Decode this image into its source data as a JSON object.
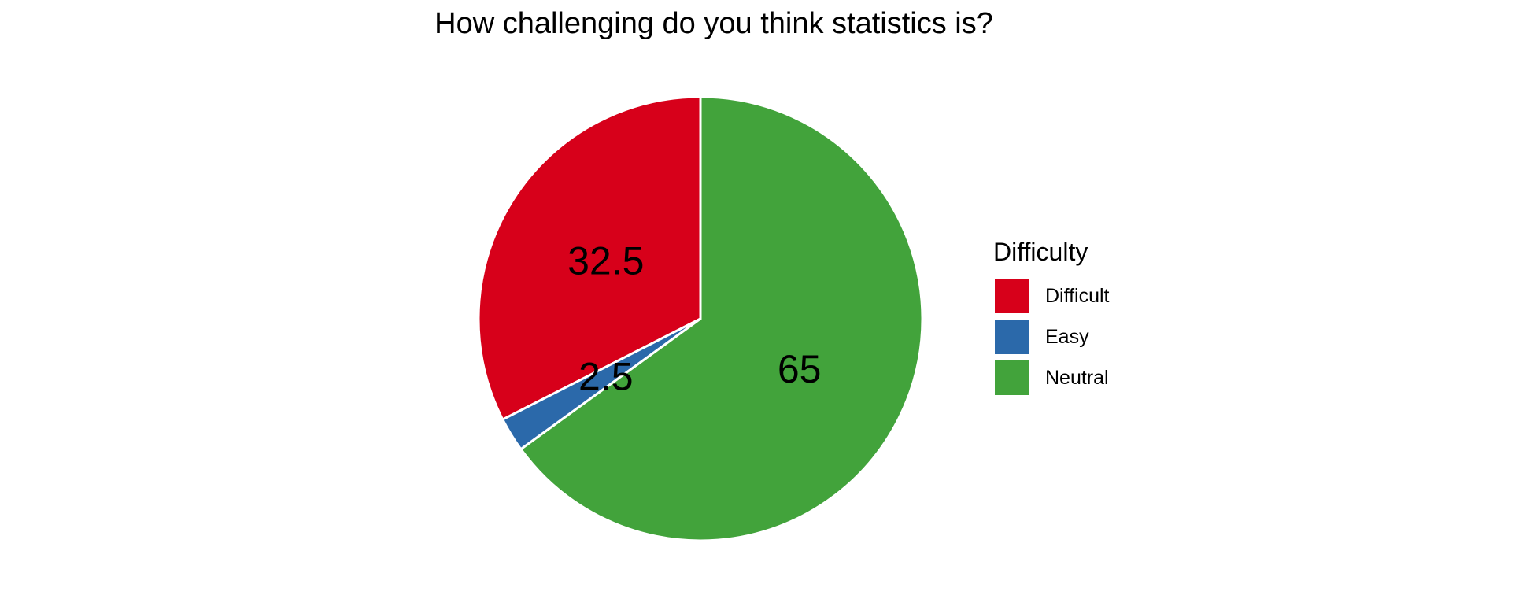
{
  "chart_data": {
    "type": "pie",
    "title": "How challenging do you think statistics is?",
    "legend_title": "Difficulty",
    "legend_position": "right",
    "categories": [
      "Difficult",
      "Easy",
      "Neutral"
    ],
    "values": [
      32.5,
      2.5,
      65
    ],
    "labels": [
      "32.5",
      "2.5",
      "65"
    ],
    "colors": [
      "#D7001A",
      "#2B69AA",
      "#42A33B"
    ]
  }
}
